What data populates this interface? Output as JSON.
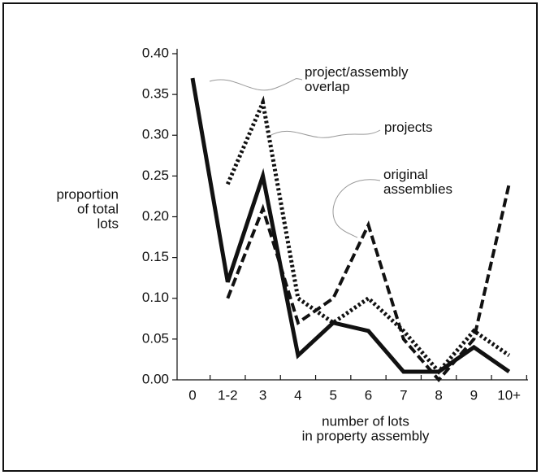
{
  "chart_data": {
    "type": "line",
    "categories": [
      "0",
      "1-2",
      "3",
      "4",
      "5",
      "6",
      "7",
      "8",
      "9",
      "10+"
    ],
    "series": [
      {
        "name": "project/assembly overlap",
        "color": "#111111",
        "style": "solid",
        "values": [
          0.37,
          0.12,
          0.25,
          0.03,
          0.07,
          0.06,
          0.01,
          0.01,
          0.04,
          0.01
        ]
      },
      {
        "name": "projects",
        "color": "#111111",
        "style": "dotted",
        "values": [
          null,
          0.24,
          0.34,
          0.1,
          0.07,
          0.1,
          0.06,
          0.01,
          0.06,
          0.03
        ]
      },
      {
        "name": "original assemblies",
        "color": "#111111",
        "style": "dashed",
        "values": [
          null,
          0.1,
          0.21,
          0.07,
          0.1,
          0.19,
          0.05,
          0.0,
          0.05,
          0.24
        ]
      }
    ],
    "ylim": [
      0,
      0.4
    ],
    "yticks": [
      {
        "value": 0,
        "label": "0.00"
      },
      {
        "value": 0.05,
        "label": "0.05"
      },
      {
        "value": 0.1,
        "label": "0.10"
      },
      {
        "value": 0.15,
        "label": "0.15"
      },
      {
        "value": 0.2,
        "label": "0.20"
      },
      {
        "value": 0.25,
        "label": "0.25"
      },
      {
        "value": 0.3,
        "label": "0.30"
      },
      {
        "value": 0.35,
        "label": "0.35"
      },
      {
        "value": 0.4,
        "label": "0.40"
      }
    ],
    "y_label": [
      "proportion",
      "of total",
      "lots"
    ],
    "x_label": [
      "number of lots",
      "in property assembly"
    ]
  }
}
